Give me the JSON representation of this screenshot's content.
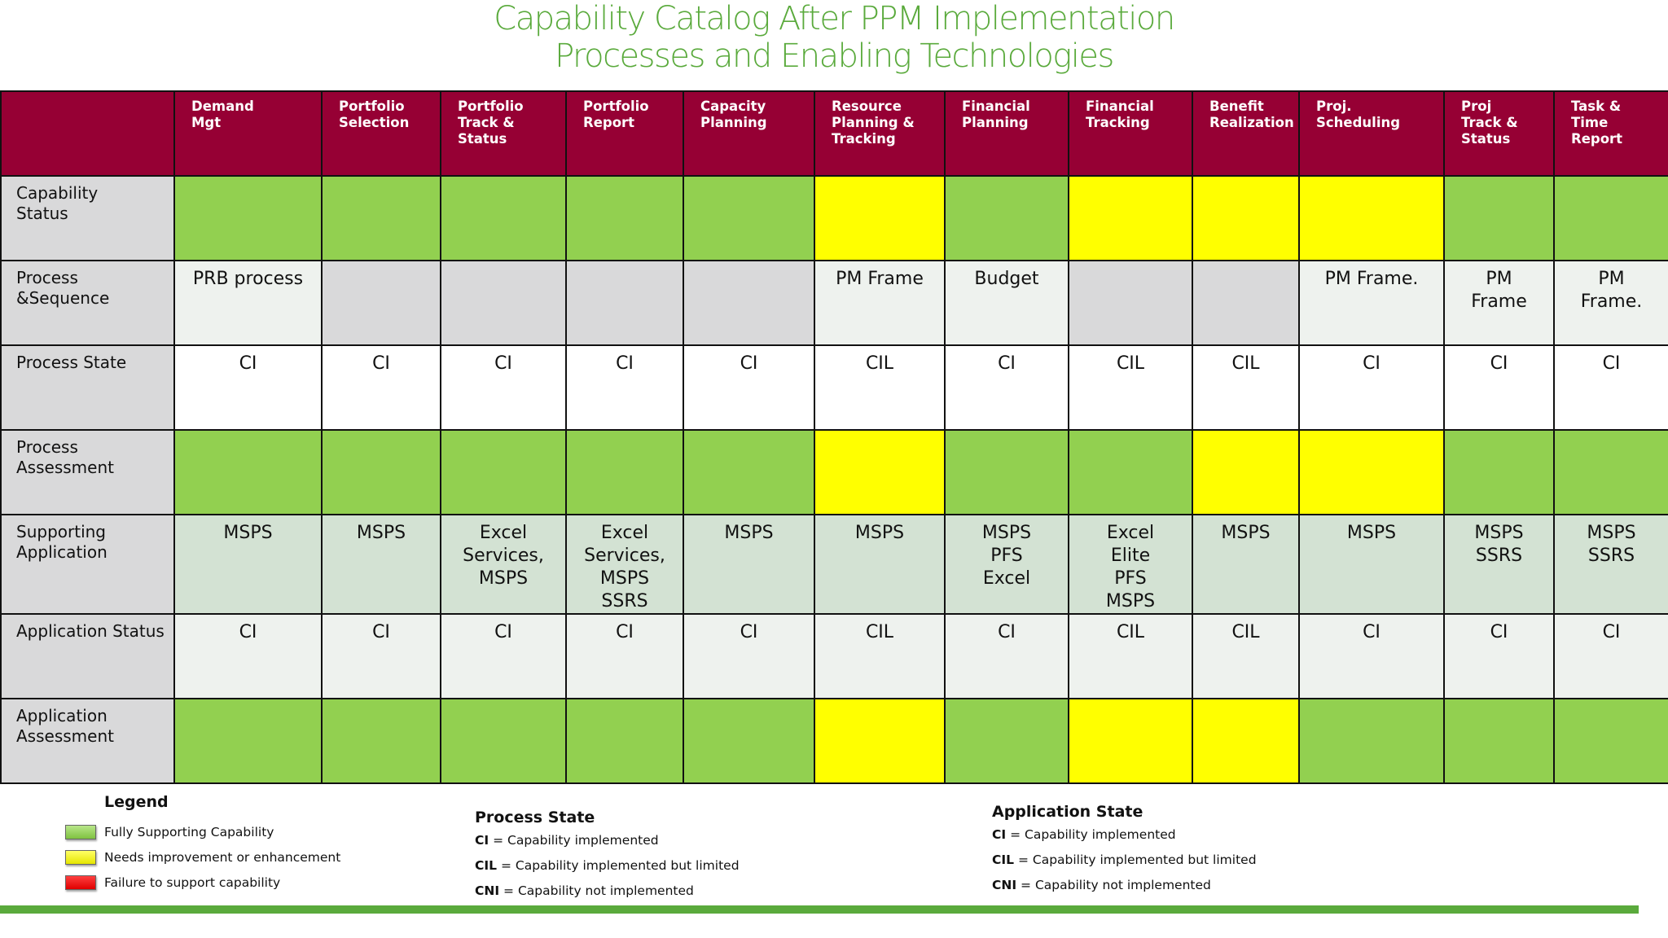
{
  "title": {
    "line1": "Capability Catalog After PPM Implementation",
    "line2": "Processes and Enabling Technologies"
  },
  "colors": {
    "header": "#960034",
    "green": "#92d050",
    "yellow": "#ffff00",
    "red": "#e00000",
    "gray": "#d9d9da",
    "title": "#5aaa3c"
  },
  "columns": [
    [
      "Demand",
      "Mgt"
    ],
    [
      "Portfolio",
      "Selection"
    ],
    [
      "Portfolio",
      "Track &",
      "Status"
    ],
    [
      "Portfolio",
      "Report"
    ],
    [
      "Capacity",
      "Planning"
    ],
    [
      "Resource",
      "Planning &",
      "Tracking"
    ],
    [
      "Financial",
      "Planning"
    ],
    [
      "Financial",
      "Tracking"
    ],
    [
      "Benefit",
      "Realization"
    ],
    [
      "Proj.",
      "Scheduling"
    ],
    [
      "Proj",
      "Track &",
      "Status"
    ],
    [
      "Task &",
      "Time",
      "Report"
    ]
  ],
  "rows": [
    {
      "label": [
        "Capability",
        "Status"
      ],
      "cells": [
        {
          "c": "green",
          "t": []
        },
        {
          "c": "green",
          "t": []
        },
        {
          "c": "green",
          "t": []
        },
        {
          "c": "green",
          "t": []
        },
        {
          "c": "green",
          "t": []
        },
        {
          "c": "yellow",
          "t": []
        },
        {
          "c": "green",
          "t": []
        },
        {
          "c": "yellow",
          "t": []
        },
        {
          "c": "yellow",
          "t": []
        },
        {
          "c": "yellow",
          "t": []
        },
        {
          "c": "green",
          "t": []
        },
        {
          "c": "green",
          "t": []
        }
      ]
    },
    {
      "label": [
        "Process",
        "&Sequence"
      ],
      "cells": [
        {
          "c": "light",
          "t": [
            "PRB process"
          ]
        },
        {
          "c": "gray",
          "t": []
        },
        {
          "c": "gray",
          "t": []
        },
        {
          "c": "gray",
          "t": []
        },
        {
          "c": "gray",
          "t": []
        },
        {
          "c": "light",
          "t": [
            "PM Frame"
          ]
        },
        {
          "c": "light",
          "t": [
            "Budget"
          ]
        },
        {
          "c": "gray",
          "t": []
        },
        {
          "c": "gray",
          "t": []
        },
        {
          "c": "light",
          "t": [
            "PM Frame."
          ]
        },
        {
          "c": "light",
          "t": [
            "PM",
            "Frame"
          ]
        },
        {
          "c": "light",
          "t": [
            "PM",
            "Frame."
          ]
        }
      ]
    },
    {
      "label": [
        "Process State"
      ],
      "cells": [
        {
          "c": "white",
          "t": [
            "CI"
          ]
        },
        {
          "c": "white",
          "t": [
            "CI"
          ]
        },
        {
          "c": "white",
          "t": [
            "CI"
          ]
        },
        {
          "c": "white",
          "t": [
            "CI"
          ]
        },
        {
          "c": "white",
          "t": [
            "CI"
          ]
        },
        {
          "c": "white",
          "t": [
            "CIL"
          ]
        },
        {
          "c": "white",
          "t": [
            "CI"
          ]
        },
        {
          "c": "white",
          "t": [
            "CIL"
          ]
        },
        {
          "c": "white",
          "t": [
            "CIL"
          ]
        },
        {
          "c": "white",
          "t": [
            "CI"
          ]
        },
        {
          "c": "white",
          "t": [
            "CI"
          ]
        },
        {
          "c": "white",
          "t": [
            "CI"
          ]
        }
      ]
    },
    {
      "label": [
        "Process",
        "Assessment"
      ],
      "cells": [
        {
          "c": "green",
          "t": []
        },
        {
          "c": "green",
          "t": []
        },
        {
          "c": "green",
          "t": []
        },
        {
          "c": "green",
          "t": []
        },
        {
          "c": "green",
          "t": []
        },
        {
          "c": "yellow",
          "t": []
        },
        {
          "c": "green",
          "t": []
        },
        {
          "c": "green",
          "t": []
        },
        {
          "c": "yellow",
          "t": []
        },
        {
          "c": "yellow",
          "t": []
        },
        {
          "c": "green",
          "t": []
        },
        {
          "c": "green",
          "t": []
        }
      ]
    },
    {
      "label": [
        "Supporting",
        "Application"
      ],
      "cells": [
        {
          "c": "pale",
          "t": [
            "MSPS"
          ]
        },
        {
          "c": "pale",
          "t": [
            "MSPS"
          ]
        },
        {
          "c": "pale",
          "t": [
            "Excel",
            "Services,",
            "MSPS"
          ]
        },
        {
          "c": "pale",
          "t": [
            "Excel",
            "Services,",
            "MSPS",
            "SSRS"
          ]
        },
        {
          "c": "pale",
          "t": [
            "MSPS"
          ]
        },
        {
          "c": "pale",
          "t": [
            "MSPS"
          ]
        },
        {
          "c": "pale",
          "t": [
            "MSPS",
            "PFS",
            "Excel"
          ]
        },
        {
          "c": "pale",
          "t": [
            "Excel",
            "Elite",
            "PFS",
            "MSPS"
          ]
        },
        {
          "c": "pale",
          "t": [
            "MSPS"
          ]
        },
        {
          "c": "pale",
          "t": [
            "MSPS"
          ]
        },
        {
          "c": "pale",
          "t": [
            "MSPS",
            "SSRS"
          ]
        },
        {
          "c": "pale",
          "t": [
            "MSPS",
            "SSRS"
          ]
        }
      ]
    },
    {
      "label": [
        "Application Status"
      ],
      "cells": [
        {
          "c": "light",
          "t": [
            "CI"
          ]
        },
        {
          "c": "light",
          "t": [
            "CI"
          ]
        },
        {
          "c": "light",
          "t": [
            "CI"
          ]
        },
        {
          "c": "light",
          "t": [
            "CI"
          ]
        },
        {
          "c": "light",
          "t": [
            "CI"
          ]
        },
        {
          "c": "light",
          "t": [
            "CIL"
          ]
        },
        {
          "c": "light",
          "t": [
            "CI"
          ]
        },
        {
          "c": "light",
          "t": [
            "CIL"
          ]
        },
        {
          "c": "light",
          "t": [
            "CIL"
          ]
        },
        {
          "c": "light",
          "t": [
            "CI"
          ]
        },
        {
          "c": "light",
          "t": [
            "CI"
          ]
        },
        {
          "c": "light",
          "t": [
            "CI"
          ]
        }
      ]
    },
    {
      "label": [
        "Application",
        "Assessment"
      ],
      "cells": [
        {
          "c": "green",
          "t": []
        },
        {
          "c": "green",
          "t": []
        },
        {
          "c": "green",
          "t": []
        },
        {
          "c": "green",
          "t": []
        },
        {
          "c": "green",
          "t": []
        },
        {
          "c": "yellow",
          "t": []
        },
        {
          "c": "green",
          "t": []
        },
        {
          "c": "yellow",
          "t": []
        },
        {
          "c": "yellow",
          "t": []
        },
        {
          "c": "green",
          "t": []
        },
        {
          "c": "green",
          "t": []
        },
        {
          "c": "green",
          "t": []
        }
      ]
    }
  ],
  "legend": {
    "title": "Legend",
    "items": [
      {
        "label": "Fully Supporting Capability",
        "color": "green"
      },
      {
        "label": "Needs improvement or enhancement",
        "color": "yellow"
      },
      {
        "label": "Failure to support capability",
        "color": "red"
      }
    ]
  },
  "process_state": {
    "heading": "Process State",
    "lines": [
      {
        "code": "CI",
        "text": " = Capability implemented"
      },
      {
        "code": "CIL",
        "text": " = Capability implemented but  limited"
      },
      {
        "code": "CNI",
        "text": " = Capability not implemented"
      }
    ]
  },
  "application_state": {
    "heading": "Application State",
    "lines": [
      {
        "code": "CI",
        "text": " = Capability implemented"
      },
      {
        "code": "CIL",
        "text": " = Capability implemented but  limited"
      },
      {
        "code": "CNI",
        "text": " = Capability not implemented"
      }
    ]
  }
}
